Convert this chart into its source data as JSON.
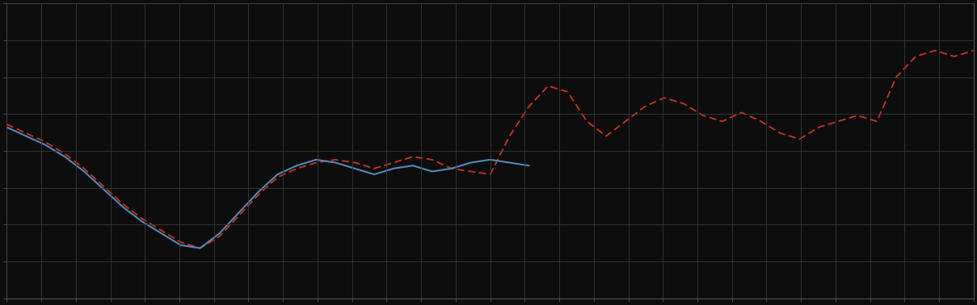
{
  "background_color": "#0d0d0d",
  "plot_bg_color": "#0d0d0d",
  "grid_color": "#3a3a3a",
  "blue_line_color": "#5588bb",
  "red_line_color": "#cc3322",
  "figsize": [
    12.09,
    3.78
  ],
  "dpi": 100,
  "xlim": [
    0,
    100
  ],
  "ylim": [
    0,
    100
  ],
  "blue_x": [
    0,
    2,
    4,
    6,
    8,
    10,
    12,
    14,
    16,
    18,
    20,
    22,
    24,
    26,
    28,
    30,
    32,
    34,
    36,
    38,
    40,
    42,
    44,
    46,
    48,
    50,
    52,
    54
  ],
  "blue_y": [
    58,
    55,
    52,
    48,
    43,
    37,
    31,
    26,
    22,
    18,
    17,
    22,
    29,
    36,
    42,
    45,
    47,
    46,
    44,
    42,
    44,
    45,
    43,
    44,
    46,
    47,
    46,
    45
  ],
  "red_x": [
    0,
    2,
    4,
    6,
    8,
    10,
    12,
    14,
    16,
    18,
    20,
    22,
    24,
    26,
    28,
    30,
    32,
    34,
    36,
    38,
    40,
    42,
    44,
    46,
    48,
    50,
    52,
    54,
    56,
    58,
    60,
    62,
    64,
    66,
    68,
    70,
    72,
    74,
    76,
    78,
    80,
    82,
    84,
    86,
    88,
    90,
    92,
    94,
    96,
    98,
    100
  ],
  "red_y": [
    59,
    56,
    53,
    49,
    44,
    38,
    32,
    27,
    23,
    19,
    17,
    21,
    28,
    35,
    41,
    44,
    46,
    47,
    46,
    44,
    46,
    48,
    47,
    44,
    43,
    42,
    55,
    65,
    72,
    70,
    60,
    55,
    60,
    65,
    68,
    66,
    62,
    60,
    63,
    60,
    56,
    54,
    58,
    60,
    62,
    60,
    75,
    82,
    84,
    82,
    84
  ],
  "n_xgrid": 28,
  "n_ygrid": 8
}
